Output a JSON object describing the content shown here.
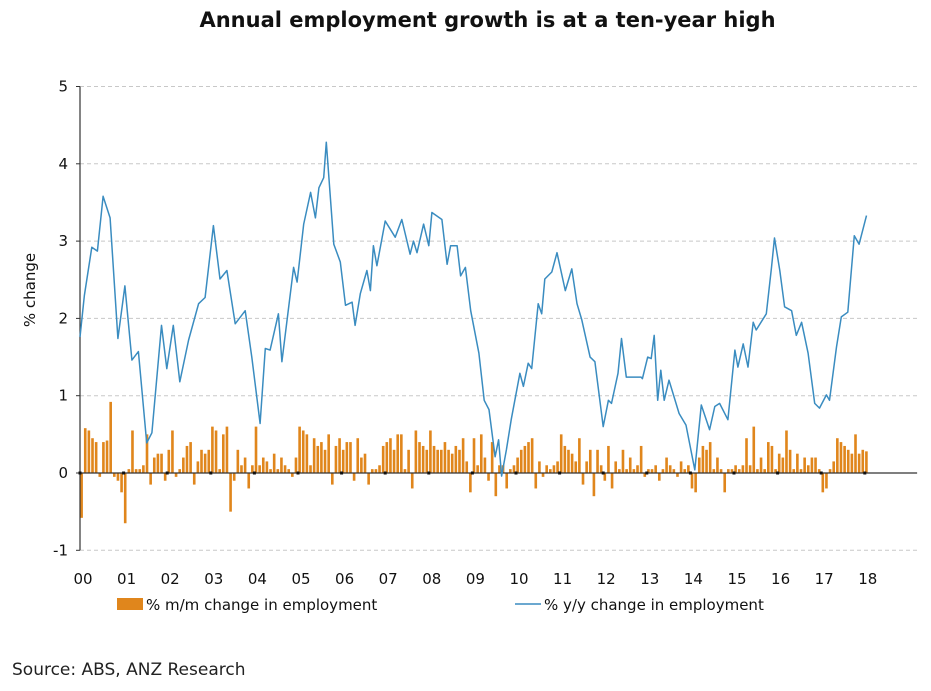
{
  "chart_data": {
    "type": "bar+line",
    "title": "Annual employment growth is at a ten-year high",
    "ylabel": "% change",
    "xlabel": "",
    "ylim": [
      -1,
      5
    ],
    "yticks": [
      "-1",
      "0",
      "1",
      "2",
      "3",
      "4",
      "5"
    ],
    "xlim": [
      2000,
      2019.2
    ],
    "xtick_labels": [
      "00",
      "01",
      "02",
      "03",
      "04",
      "05",
      "06",
      "07",
      "08",
      "09",
      "10",
      "11",
      "12",
      "13",
      "14",
      "15",
      "16",
      "17",
      "18"
    ],
    "grid": "horizontal dashed",
    "legend_placement": "bottom",
    "colors": {
      "bars": "#E0861C",
      "line": "#3A8CC0"
    },
    "series": [
      {
        "name": "% m/m change in employment",
        "type": "bar",
        "start": "2000-01",
        "frequency": "monthly",
        "values": [
          -0.58,
          0.58,
          0.55,
          0.45,
          0.4,
          -0.05,
          0.4,
          0.42,
          0.92,
          -0.05,
          -0.1,
          -0.25,
          -0.65,
          0.05,
          0.55,
          0.05,
          0.05,
          0.1,
          0.5,
          -0.15,
          0.2,
          0.25,
          0.25,
          -0.1,
          0.3,
          0.55,
          -0.05,
          0.05,
          0.2,
          0.35,
          0.4,
          -0.15,
          0.15,
          0.3,
          0.25,
          0.3,
          0.6,
          0.55,
          0.05,
          0.5,
          0.6,
          -0.5,
          -0.1,
          0.3,
          0.1,
          0.2,
          -0.2,
          0.1,
          0.6,
          0.1,
          0.2,
          0.15,
          0.05,
          0.25,
          0.05,
          0.2,
          0.1,
          0.05,
          -0.05,
          0.2,
          0.6,
          0.55,
          0.5,
          0.1,
          0.45,
          0.35,
          0.4,
          0.3,
          0.5,
          -0.15,
          0.35,
          0.45,
          0.3,
          0.4,
          0.4,
          -0.1,
          0.45,
          0.2,
          0.25,
          -0.15,
          0.05,
          0.05,
          0.1,
          0.35,
          0.4,
          0.45,
          0.3,
          0.5,
          0.5,
          0.05,
          0.3,
          -0.2,
          0.55,
          0.4,
          0.35,
          0.3,
          0.55,
          0.35,
          0.3,
          0.3,
          0.4,
          0.3,
          0.25,
          0.35,
          0.3,
          0.45,
          0.15,
          -0.25,
          0.45,
          0.1,
          0.5,
          0.2,
          -0.1,
          0.4,
          -0.3,
          0.1,
          0.1,
          -0.2,
          0.05,
          0.1,
          0.2,
          0.3,
          0.35,
          0.4,
          0.45,
          -0.2,
          0.15,
          -0.05,
          0.1,
          0.05,
          0.1,
          0.15,
          0.5,
          0.35,
          0.3,
          0.25,
          0.15,
          0.45,
          -0.15,
          0.15,
          0.3,
          -0.3,
          0.3,
          0.1,
          -0.1,
          0.35,
          -0.2,
          0.15,
          0.05,
          0.3,
          0.05,
          0.2,
          0.05,
          0.1,
          0.35,
          -0.05,
          0.05,
          0.05,
          0.1,
          -0.1,
          0.05,
          0.2,
          0.1,
          0.05,
          -0.05,
          0.15,
          0.05,
          0.1,
          -0.2,
          -0.25,
          0.2,
          0.35,
          0.3,
          0.4,
          0.05,
          0.2,
          0.05,
          -0.25,
          0.05,
          0.05,
          0.1,
          0.05,
          0.1,
          0.45,
          0.1,
          0.6,
          0.05,
          0.2,
          0.05,
          0.4,
          0.35,
          0.05,
          0.25,
          0.2,
          0.55,
          0.3,
          0.05,
          0.25,
          0.05,
          0.2,
          0.1,
          0.2,
          0.2,
          0.05,
          -0.25,
          -0.2,
          0.05,
          0.15,
          0.45,
          0.4,
          0.35,
          0.3,
          0.25,
          0.5,
          0.25,
          0.3,
          0.28
        ]
      },
      {
        "name": "% y/y change in employment",
        "type": "line",
        "x": [
          2000.0,
          2000.1,
          2000.27,
          2000.4,
          2000.53,
          2000.69,
          2000.87,
          2001.03,
          2001.19,
          2001.34,
          2001.53,
          2001.65,
          2001.87,
          2001.99,
          2002.14,
          2002.29,
          2002.49,
          2002.72,
          2002.87,
          2003.06,
          2003.21,
          2003.37,
          2003.56,
          2003.79,
          2003.94,
          2004.13,
          2004.25,
          2004.36,
          2004.55,
          2004.63,
          2004.9,
          2004.98,
          2005.13,
          2005.29,
          2005.4,
          2005.48,
          2005.59,
          2005.65,
          2005.82,
          2005.97,
          2006.09,
          2006.24,
          2006.31,
          2006.43,
          2006.58,
          2006.66,
          2006.73,
          2006.81,
          2007.0,
          2007.23,
          2007.38,
          2007.57,
          2007.65,
          2007.73,
          2007.88,
          2008.0,
          2008.07,
          2008.3,
          2008.42,
          2008.5,
          2008.65,
          2008.73,
          2008.84,
          2008.96,
          2009.15,
          2009.27,
          2009.38,
          2009.52,
          2009.6,
          2009.67,
          2009.78,
          2009.89,
          2010.09,
          2010.17,
          2010.28,
          2010.36,
          2010.51,
          2010.59,
          2010.66,
          2010.82,
          2010.94,
          2011.13,
          2011.28,
          2011.4,
          2011.51,
          2011.7,
          2011.81,
          2012.0,
          2012.12,
          2012.19,
          2012.34,
          2012.42,
          2012.53,
          2012.87,
          2012.9,
          2013.02,
          2013.1,
          2013.17,
          2013.25,
          2013.32,
          2013.4,
          2013.51,
          2013.74,
          2013.9,
          2014.1,
          2014.25,
          2014.44,
          2014.56,
          2014.67,
          2014.86,
          2015.02,
          2015.09,
          2015.21,
          2015.32,
          2015.44,
          2015.51,
          2015.74,
          2015.86,
          2015.93,
          2016.05,
          2016.16,
          2016.32,
          2016.43,
          2016.55,
          2016.7,
          2016.85,
          2016.96,
          2017.12,
          2017.19,
          2017.35,
          2017.46,
          2017.61,
          2017.76,
          2017.87,
          2018.04
        ],
        "values": [
          1.76,
          2.3,
          2.92,
          2.87,
          3.58,
          3.3,
          1.74,
          2.42,
          1.46,
          1.57,
          0.39,
          0.52,
          1.91,
          1.35,
          1.91,
          1.18,
          1.72,
          2.19,
          2.27,
          3.2,
          2.51,
          2.62,
          1.93,
          2.1,
          1.5,
          0.64,
          1.61,
          1.59,
          2.06,
          1.44,
          2.66,
          2.47,
          3.22,
          3.63,
          3.3,
          3.69,
          3.82,
          4.28,
          2.96,
          2.73,
          2.17,
          2.21,
          1.91,
          2.32,
          2.62,
          2.36,
          2.94,
          2.68,
          3.26,
          3.05,
          3.28,
          2.83,
          3.0,
          2.85,
          3.22,
          2.94,
          3.37,
          3.28,
          2.7,
          2.94,
          2.94,
          2.55,
          2.66,
          2.1,
          1.55,
          0.94,
          0.82,
          0.21,
          0.43,
          -0.04,
          0.3,
          0.69,
          1.29,
          1.12,
          1.42,
          1.35,
          2.19,
          2.06,
          2.51,
          2.6,
          2.85,
          2.36,
          2.64,
          2.19,
          1.98,
          1.5,
          1.44,
          0.6,
          0.94,
          0.9,
          1.29,
          1.74,
          1.24,
          1.24,
          1.22,
          1.5,
          1.48,
          1.78,
          0.94,
          1.33,
          0.94,
          1.2,
          0.77,
          0.62,
          0.04,
          0.88,
          0.56,
          0.86,
          0.9,
          0.69,
          1.59,
          1.37,
          1.67,
          1.37,
          1.95,
          1.85,
          2.06,
          2.66,
          3.04,
          2.62,
          2.15,
          2.1,
          1.78,
          1.95,
          1.55,
          0.9,
          0.84,
          1.01,
          0.94,
          1.63,
          2.02,
          2.08,
          3.07,
          2.96,
          3.33
        ]
      }
    ]
  },
  "source": "Source: ABS, ANZ Research"
}
